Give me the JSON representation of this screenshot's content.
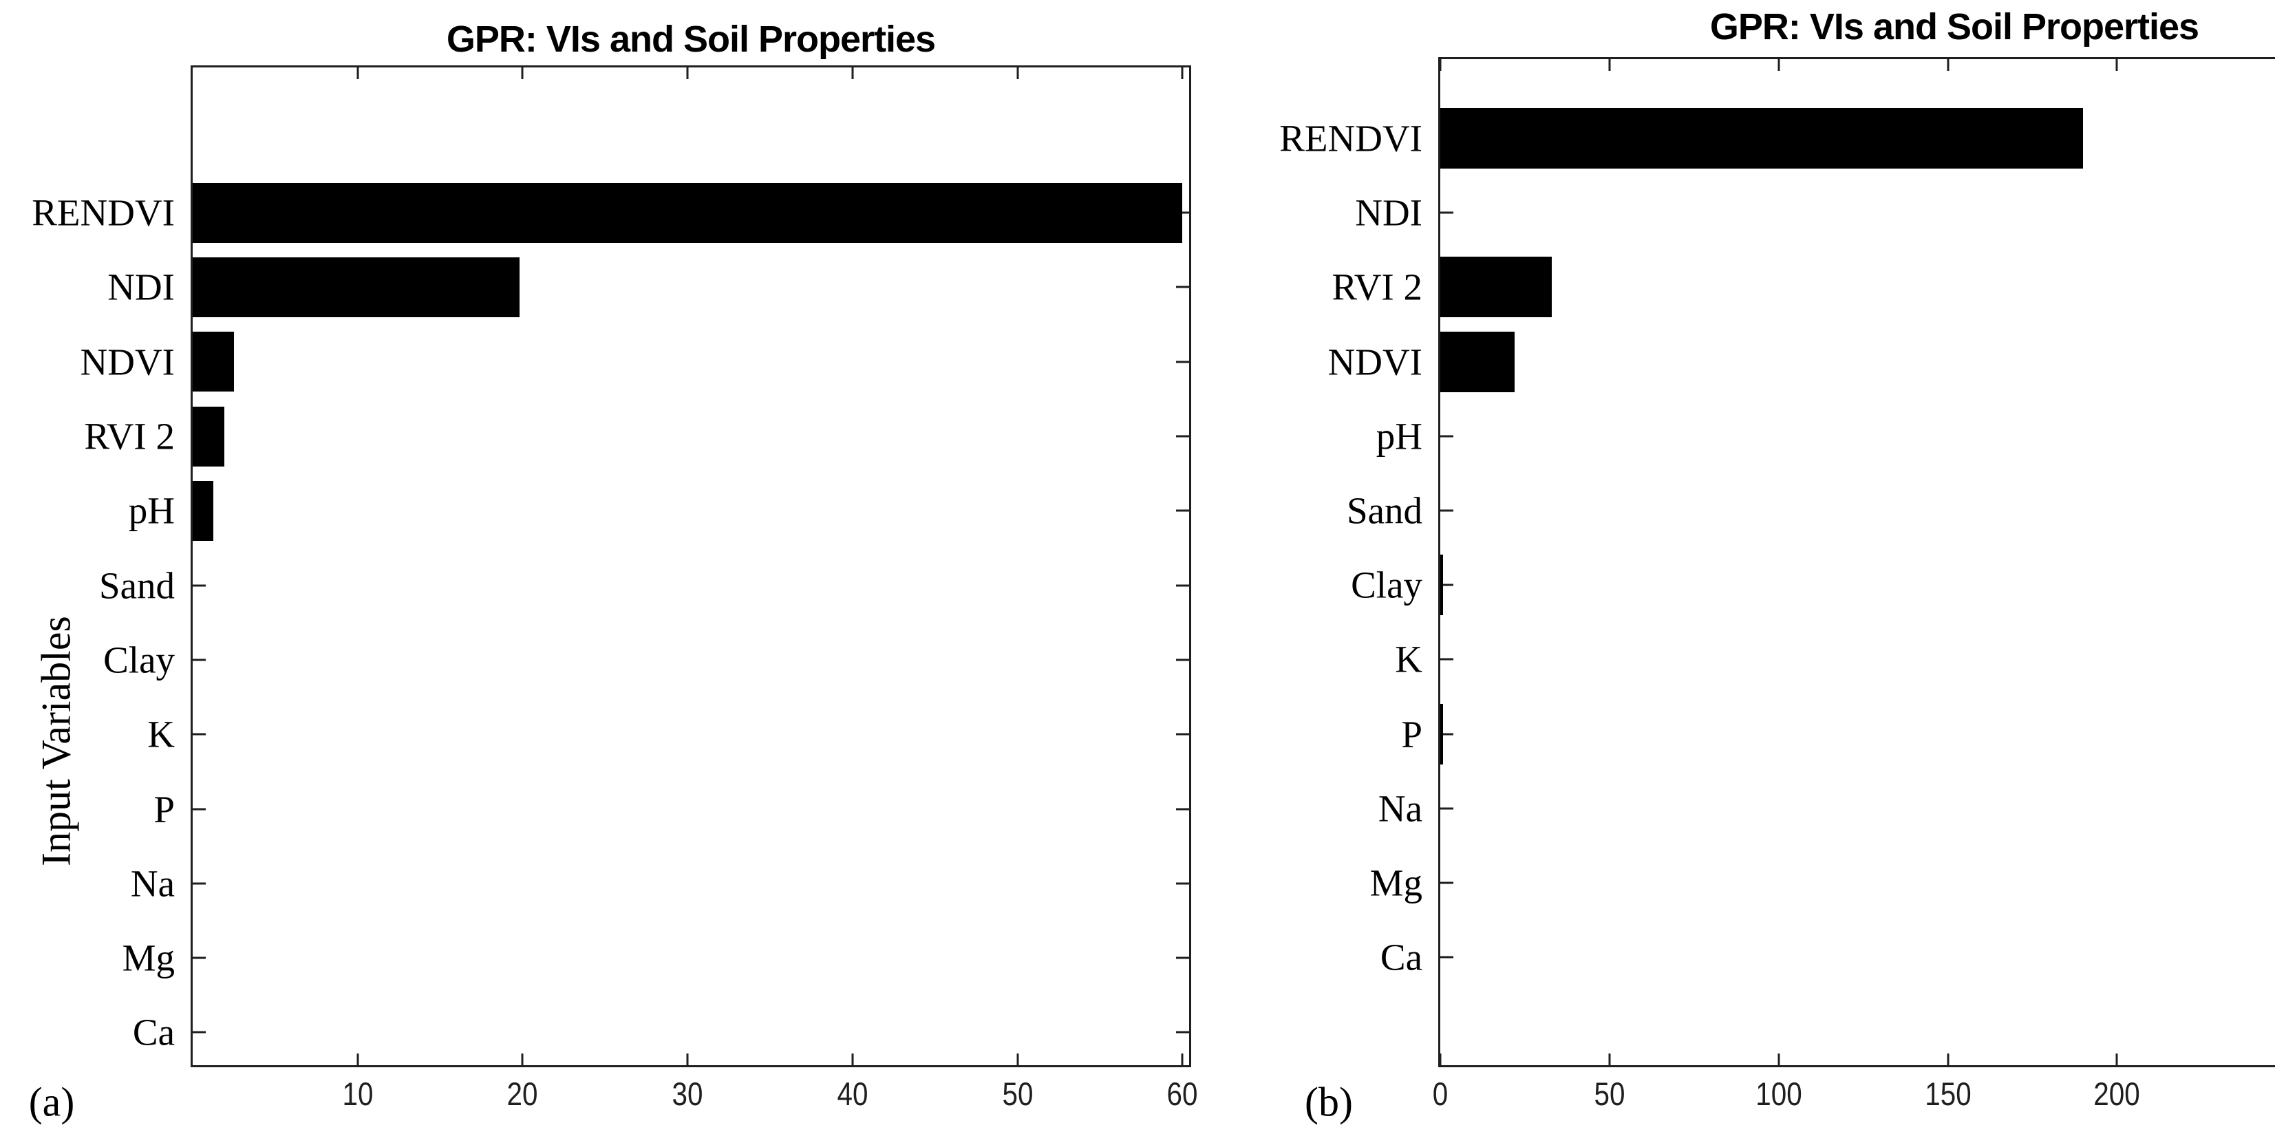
{
  "figure": {
    "background": "#ffffff",
    "bar_color": "#000000",
    "axis_color": "#1f1f1f"
  },
  "panel_a": {
    "tag": "(a)"
  },
  "panel_b": {
    "tag": "(b)"
  },
  "chart_data": [
    {
      "id": "a",
      "type": "bar",
      "orientation": "horizontal",
      "title": "GPR: VIs and Soil Properties",
      "ylabel": "Input Variables",
      "xlabel": "",
      "categories": [
        "RENDVI",
        "NDI",
        "NDVI",
        "RVI 2",
        "pH",
        "Sand",
        "Clay",
        "K",
        "P",
        "Na",
        "Mg",
        "Ca"
      ],
      "values": [
        60,
        19.8,
        2.5,
        1.9,
        1.25,
        0,
        0,
        0,
        0,
        0,
        0,
        0
      ],
      "xticks": [
        10,
        20,
        30,
        40,
        50,
        60
      ],
      "xlim": [
        0,
        60.4
      ],
      "grid": false,
      "legend": "none",
      "bar_color": "#000000"
    },
    {
      "id": "b",
      "type": "bar",
      "orientation": "horizontal",
      "title": "GPR: VIs and Soil Properties",
      "ylabel": "",
      "xlabel": "",
      "categories": [
        "RENDVI",
        "NDI",
        "RVI 2",
        "NDVI",
        "pH",
        "Sand",
        "Clay",
        "K",
        "P",
        "Na",
        "Mg",
        "Ca"
      ],
      "values": [
        190,
        0,
        33,
        22,
        0,
        0,
        0.8,
        0,
        0.8,
        0,
        0,
        0
      ],
      "xticks": [
        0,
        50,
        100,
        150,
        200
      ],
      "xlim": [
        0,
        246.7
      ],
      "grid": false,
      "legend": "none",
      "bar_color": "#000000"
    }
  ]
}
